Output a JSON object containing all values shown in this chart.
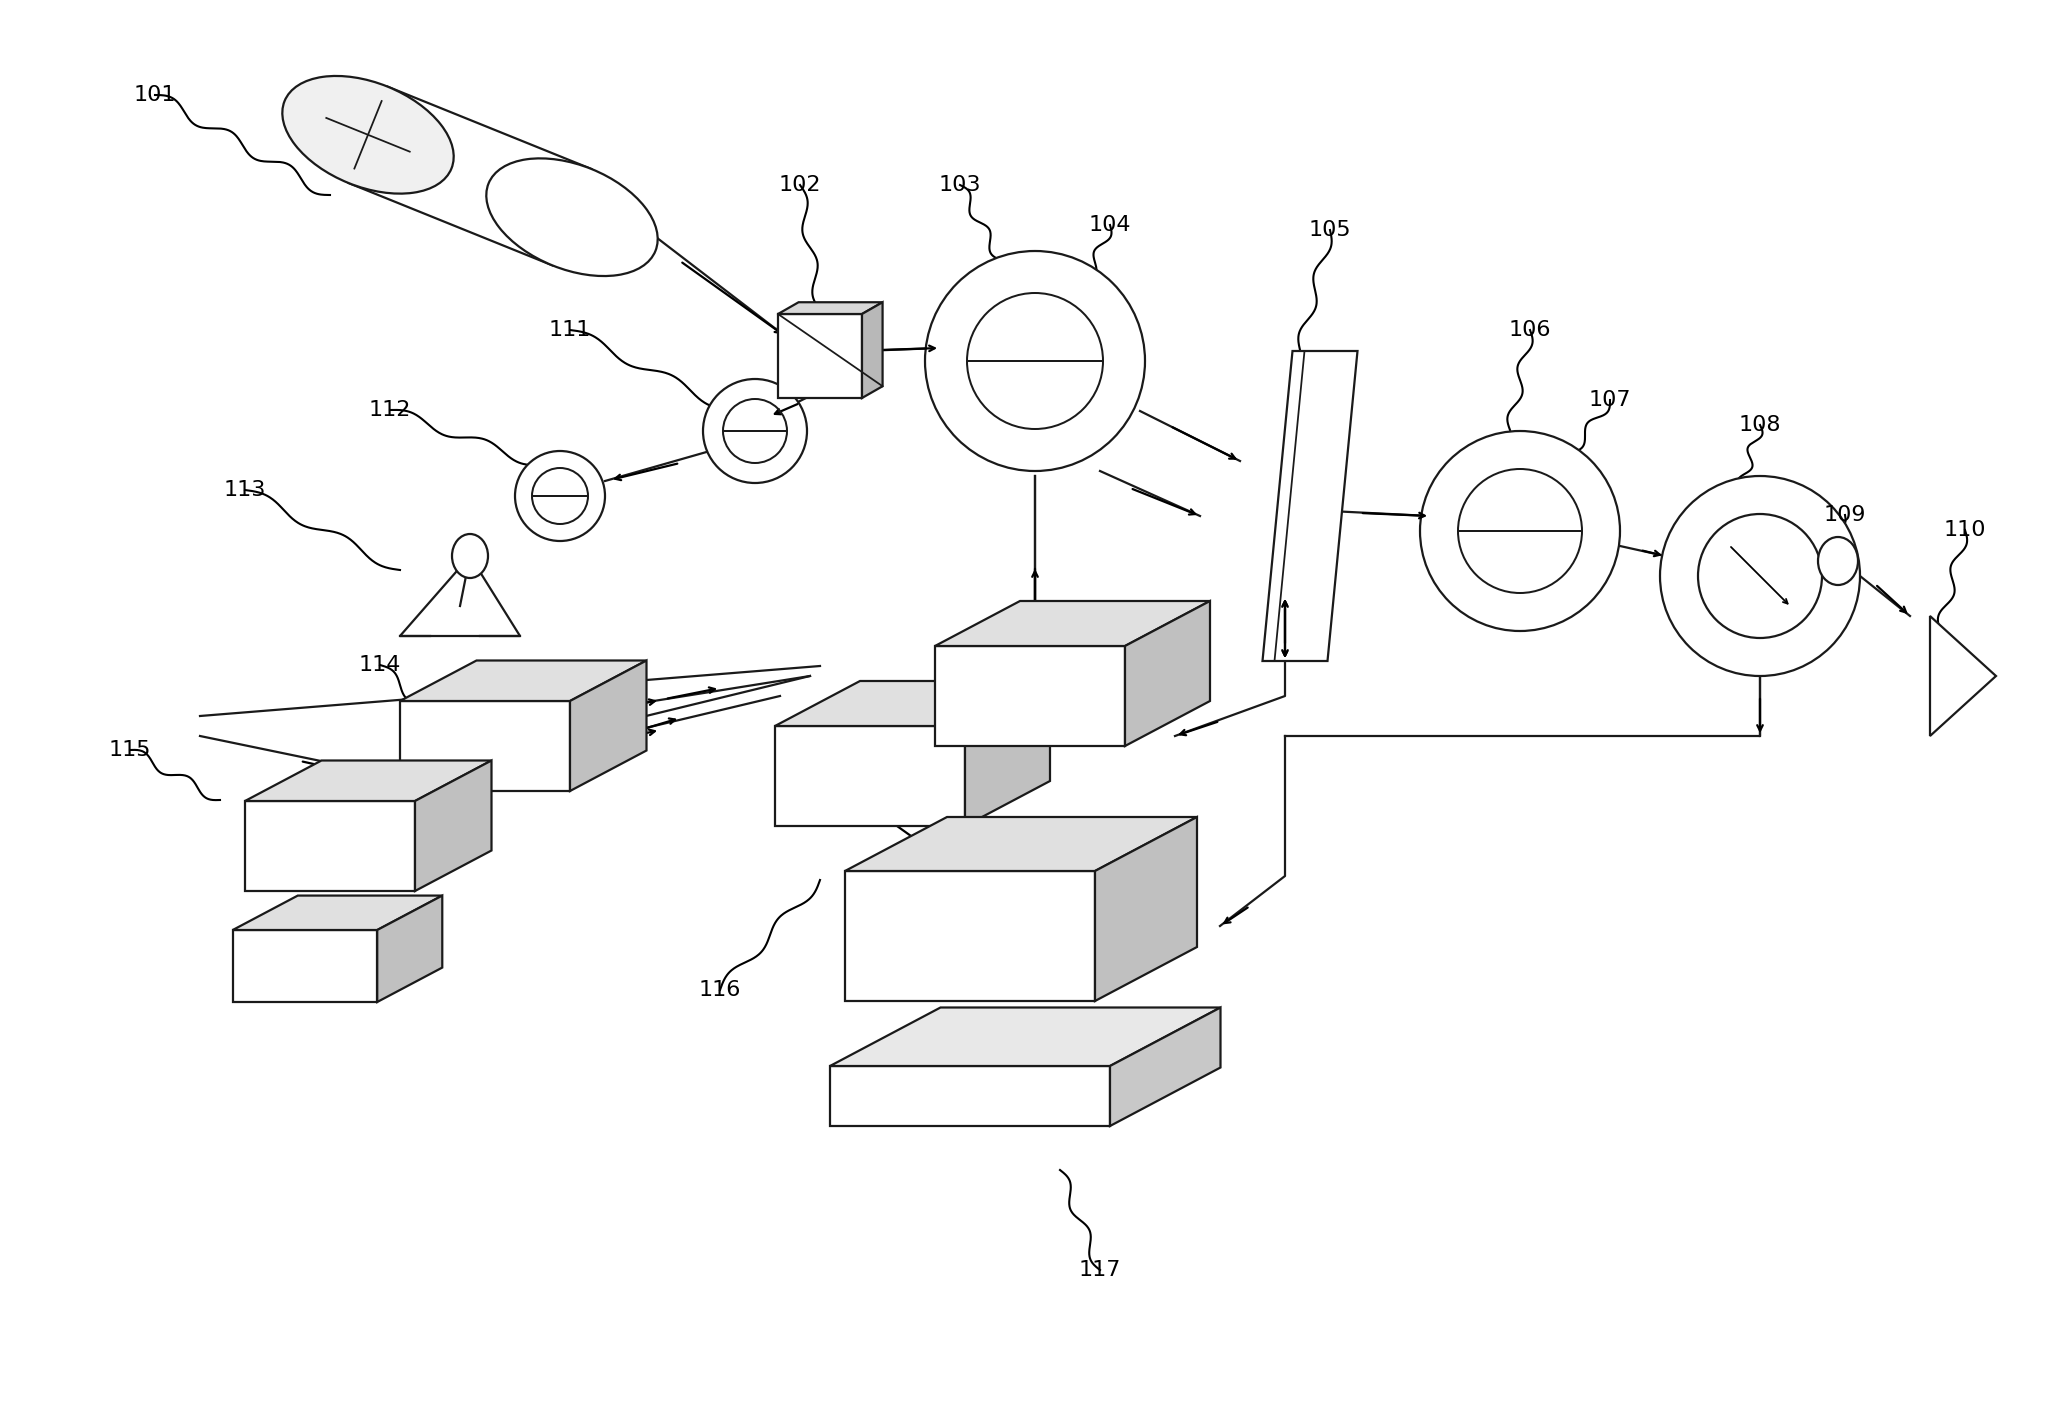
{
  "bg_color": "#ffffff",
  "line_color": "#1a1a1a",
  "label_fontsize": 16,
  "lw": 1.6
}
